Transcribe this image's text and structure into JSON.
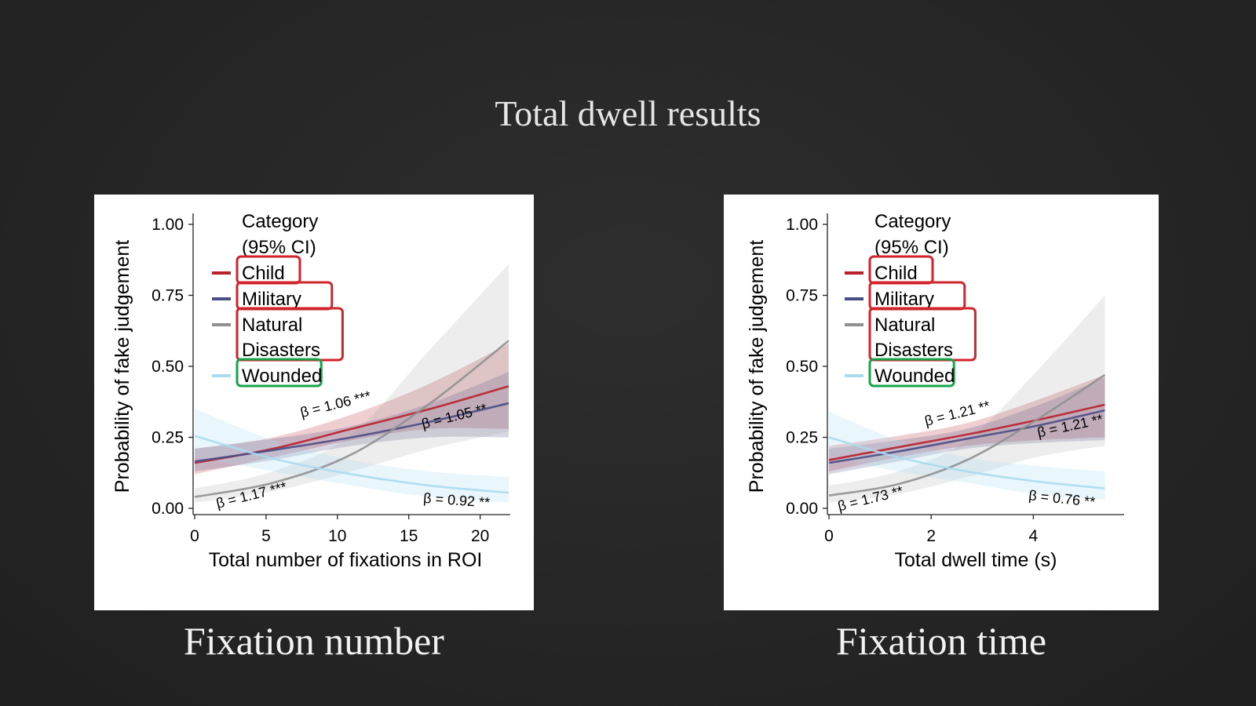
{
  "slide": {
    "title": "Total dwell results",
    "captions": [
      "Fixation number",
      "Fixation time"
    ]
  },
  "colors": {
    "Child": "#b8212c",
    "Military": "#4a4e86",
    "Natural Disasters": "#909090",
    "Wounded": "#a8dcef",
    "highlight_red": "#d1232a",
    "highlight_green": "#16a34a"
  },
  "chart_data": [
    {
      "type": "line",
      "xlabel": "Total number of fixations in ROI",
      "ylabel": "Probability of fake judgement",
      "xlim": [
        0,
        22
      ],
      "ylim": [
        0,
        1
      ],
      "xticks": [
        "0",
        "5",
        "10",
        "15",
        "20"
      ],
      "yticks": [
        "0.00",
        "0.25",
        "0.50",
        "0.75",
        "1.00"
      ],
      "legend": {
        "title_lines": [
          "Category",
          "(95% CI)"
        ],
        "placement": "top-left",
        "entries": [
          {
            "series": "Child",
            "lines": [
              "Child"
            ],
            "box": "red"
          },
          {
            "series": "Military",
            "lines": [
              "Military"
            ],
            "box": "red"
          },
          {
            "series": "Natural Disasters",
            "lines": [
              "Natural",
              "Disasters"
            ],
            "box": "red"
          },
          {
            "series": "Wounded",
            "lines": [
              "Wounded"
            ],
            "box": "green"
          }
        ]
      },
      "series": [
        {
          "name": "Child",
          "x": [
            0,
            5.5,
            11,
            16.5,
            22
          ],
          "y": [
            0.16,
            0.21,
            0.28,
            0.35,
            0.43
          ],
          "ci_low": [
            0.12,
            0.18,
            0.24,
            0.28,
            0.28
          ],
          "ci_high": [
            0.21,
            0.25,
            0.33,
            0.44,
            0.58
          ]
        },
        {
          "name": "Military",
          "x": [
            0,
            5.5,
            11,
            16.5,
            22
          ],
          "y": [
            0.165,
            0.205,
            0.25,
            0.305,
            0.37
          ],
          "ci_low": [
            0.13,
            0.17,
            0.22,
            0.25,
            0.25
          ],
          "ci_high": [
            0.21,
            0.245,
            0.29,
            0.37,
            0.48
          ]
        },
        {
          "name": "Natural Disasters",
          "x": [
            0,
            5.5,
            11,
            16.5,
            22
          ],
          "y": [
            0.04,
            0.09,
            0.19,
            0.37,
            0.59
          ],
          "ci_low": [
            0.02,
            0.06,
            0.13,
            0.21,
            0.27
          ],
          "ci_high": [
            0.07,
            0.13,
            0.26,
            0.56,
            0.86
          ]
        },
        {
          "name": "Wounded",
          "x": [
            0,
            5.5,
            11,
            16.5,
            22
          ],
          "y": [
            0.255,
            0.175,
            0.12,
            0.08,
            0.055
          ],
          "ci_low": [
            0.18,
            0.13,
            0.08,
            0.04,
            0.02
          ],
          "ci_high": [
            0.35,
            0.24,
            0.17,
            0.13,
            0.11
          ]
        }
      ],
      "annotations": [
        {
          "text": "β = 1.06 ***",
          "x": 7.5,
          "y": 0.32,
          "rotate": -14
        },
        {
          "text": "β = 1.05 **",
          "x": 16,
          "y": 0.28,
          "rotate": -14
        },
        {
          "text": "β = 1.17 ***",
          "x": 1.6,
          "y": 0.0,
          "rotate": -14
        },
        {
          "text": "β = 0.92 **",
          "x": 16,
          "y": 0.02,
          "rotate": 4
        }
      ]
    },
    {
      "type": "line",
      "xlabel": "Total dwell time (s)",
      "ylabel": "Probability of fake judgement",
      "xlim": [
        0,
        5.5
      ],
      "ylim": [
        0,
        1
      ],
      "xticks": [
        "0",
        "2",
        "4"
      ],
      "yticks": [
        "0.00",
        "0.25",
        "0.50",
        "0.75",
        "1.00"
      ],
      "legend": {
        "title_lines": [
          "Category",
          "(95% CI)"
        ],
        "placement": "top-left",
        "entries": [
          {
            "series": "Child",
            "lines": [
              "Child"
            ],
            "box": "red"
          },
          {
            "series": "Military",
            "lines": [
              "Military"
            ],
            "box": "red"
          },
          {
            "series": "Natural Disasters",
            "lines": [
              "Natural",
              "Disasters"
            ],
            "box": "red"
          },
          {
            "series": "Wounded",
            "lines": [
              "Wounded"
            ],
            "box": "green"
          }
        ]
      },
      "series": [
        {
          "name": "Child",
          "x": [
            0,
            1.35,
            2.7,
            4.05,
            5.4
          ],
          "y": [
            0.17,
            0.215,
            0.26,
            0.31,
            0.365
          ],
          "ci_low": [
            0.13,
            0.18,
            0.22,
            0.24,
            0.25
          ],
          "ci_high": [
            0.22,
            0.255,
            0.3,
            0.38,
            0.47
          ]
        },
        {
          "name": "Military",
          "x": [
            0,
            1.35,
            2.7,
            4.05,
            5.4
          ],
          "y": [
            0.16,
            0.2,
            0.245,
            0.29,
            0.345
          ],
          "ci_low": [
            0.12,
            0.165,
            0.21,
            0.23,
            0.24
          ],
          "ci_high": [
            0.21,
            0.24,
            0.28,
            0.36,
            0.46
          ]
        },
        {
          "name": "Natural Disasters",
          "x": [
            0,
            1.35,
            2.7,
            4.05,
            5.4
          ],
          "y": [
            0.045,
            0.085,
            0.17,
            0.31,
            0.47
          ],
          "ci_low": [
            0.02,
            0.05,
            0.11,
            0.18,
            0.22
          ],
          "ci_high": [
            0.08,
            0.13,
            0.24,
            0.48,
            0.75
          ]
        },
        {
          "name": "Wounded",
          "x": [
            0,
            1.35,
            2.7,
            4.05,
            5.4
          ],
          "y": [
            0.25,
            0.18,
            0.13,
            0.095,
            0.07
          ],
          "ci_low": [
            0.18,
            0.13,
            0.09,
            0.05,
            0.03
          ],
          "ci_high": [
            0.34,
            0.24,
            0.18,
            0.15,
            0.13
          ]
        }
      ],
      "annotations": [
        {
          "text": "β = 1.21 **",
          "x": 1.9,
          "y": 0.29,
          "rotate": -14
        },
        {
          "text": "β = 1.21 **",
          "x": 4.1,
          "y": 0.25,
          "rotate": -12
        },
        {
          "text": "β = 1.73 **",
          "x": 0.2,
          "y": -0.01,
          "rotate": -14
        },
        {
          "text": "β = 0.76 **",
          "x": 3.9,
          "y": 0.03,
          "rotate": 6
        }
      ]
    }
  ]
}
